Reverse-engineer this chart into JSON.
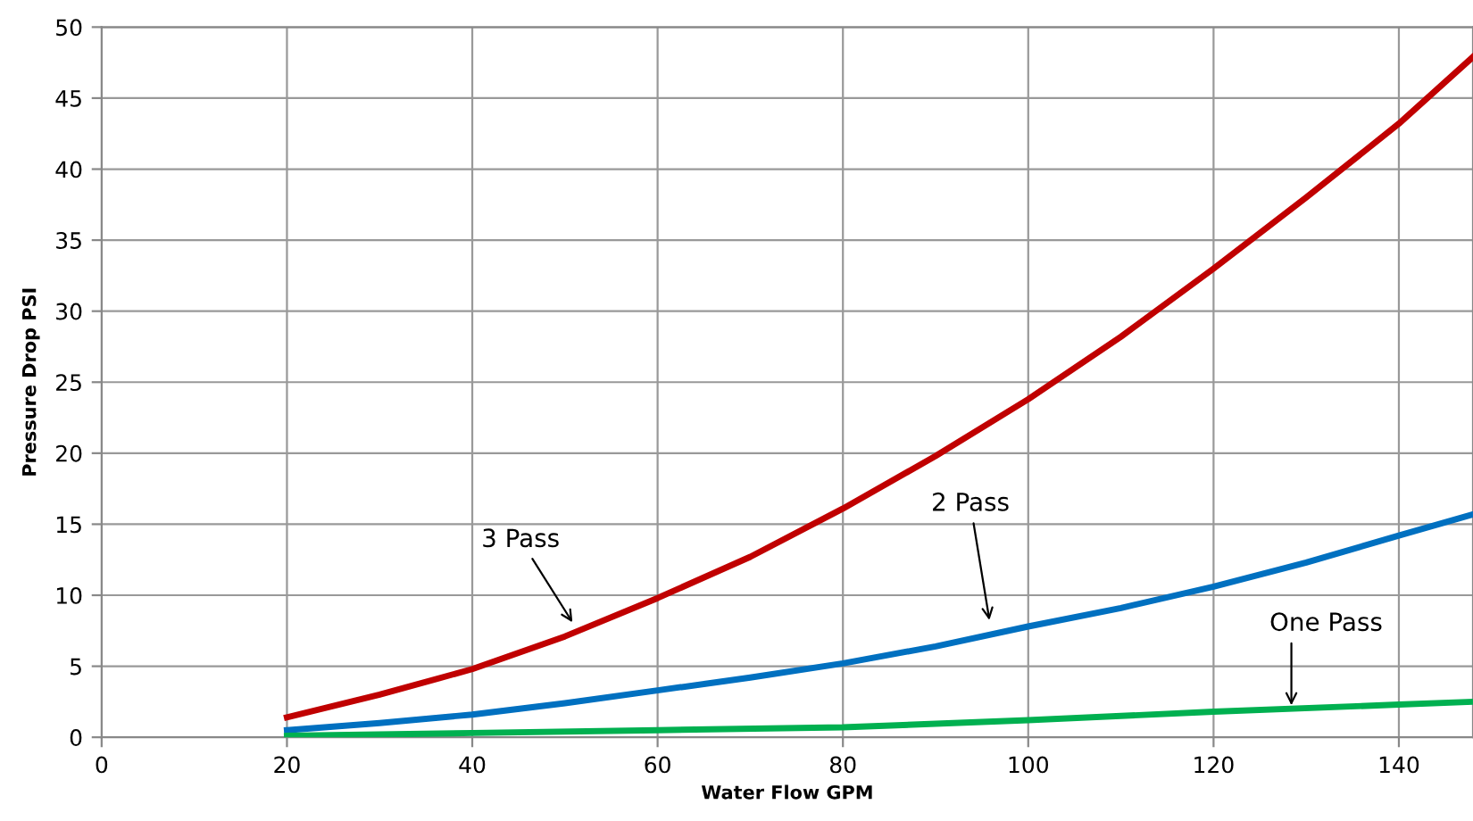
{
  "chart_data": {
    "type": "line",
    "xlabel": "Water Flow GPM",
    "ylabel": "Pressure Drop PSI",
    "series": [
      {
        "color": "#c00000",
        "x": [
          20,
          30,
          40,
          50,
          60,
          70,
          80,
          90,
          100,
          110,
          120,
          130,
          140,
          148
        ],
        "values": [
          1.4,
          3.0,
          4.8,
          7.1,
          9.8,
          12.7,
          16.1,
          19.8,
          23.8,
          28.2,
          33.0,
          38.0,
          43.2,
          47.9
        ]
      },
      {
        "color": "#0070c0",
        "x": [
          20,
          30,
          40,
          50,
          60,
          70,
          80,
          90,
          100,
          110,
          120,
          130,
          140,
          148
        ],
        "values": [
          0.5,
          1.0,
          1.6,
          2.4,
          3.3,
          4.2,
          5.2,
          6.4,
          7.8,
          9.1,
          10.6,
          12.3,
          14.2,
          15.7
        ]
      },
      {
        "color": "#00b050",
        "x": [
          20,
          40,
          60,
          80,
          100,
          120,
          140,
          148
        ],
        "values": [
          0.1,
          0.3,
          0.5,
          0.7,
          1.2,
          1.8,
          2.3,
          2.5
        ]
      }
    ],
    "annotations": [
      {
        "text": "3 Pass",
        "x": 51.1,
        "y": 7.8
      },
      {
        "text": "2 Pass",
        "x": 95.9,
        "y": 7.9
      },
      {
        "text": "One Pass",
        "x": 128.4,
        "y": 1.9
      }
    ],
    "xlim": [
      0,
      148
    ],
    "ylim": [
      0,
      50
    ],
    "xticks": [
      0,
      20,
      40,
      60,
      80,
      100,
      120,
      140
    ],
    "yticks": [
      0,
      5,
      10,
      15,
      20,
      25,
      30,
      35,
      40,
      45,
      50
    ],
    "grid": true,
    "legend": false,
    "marker": "none",
    "line_style": "solid"
  }
}
